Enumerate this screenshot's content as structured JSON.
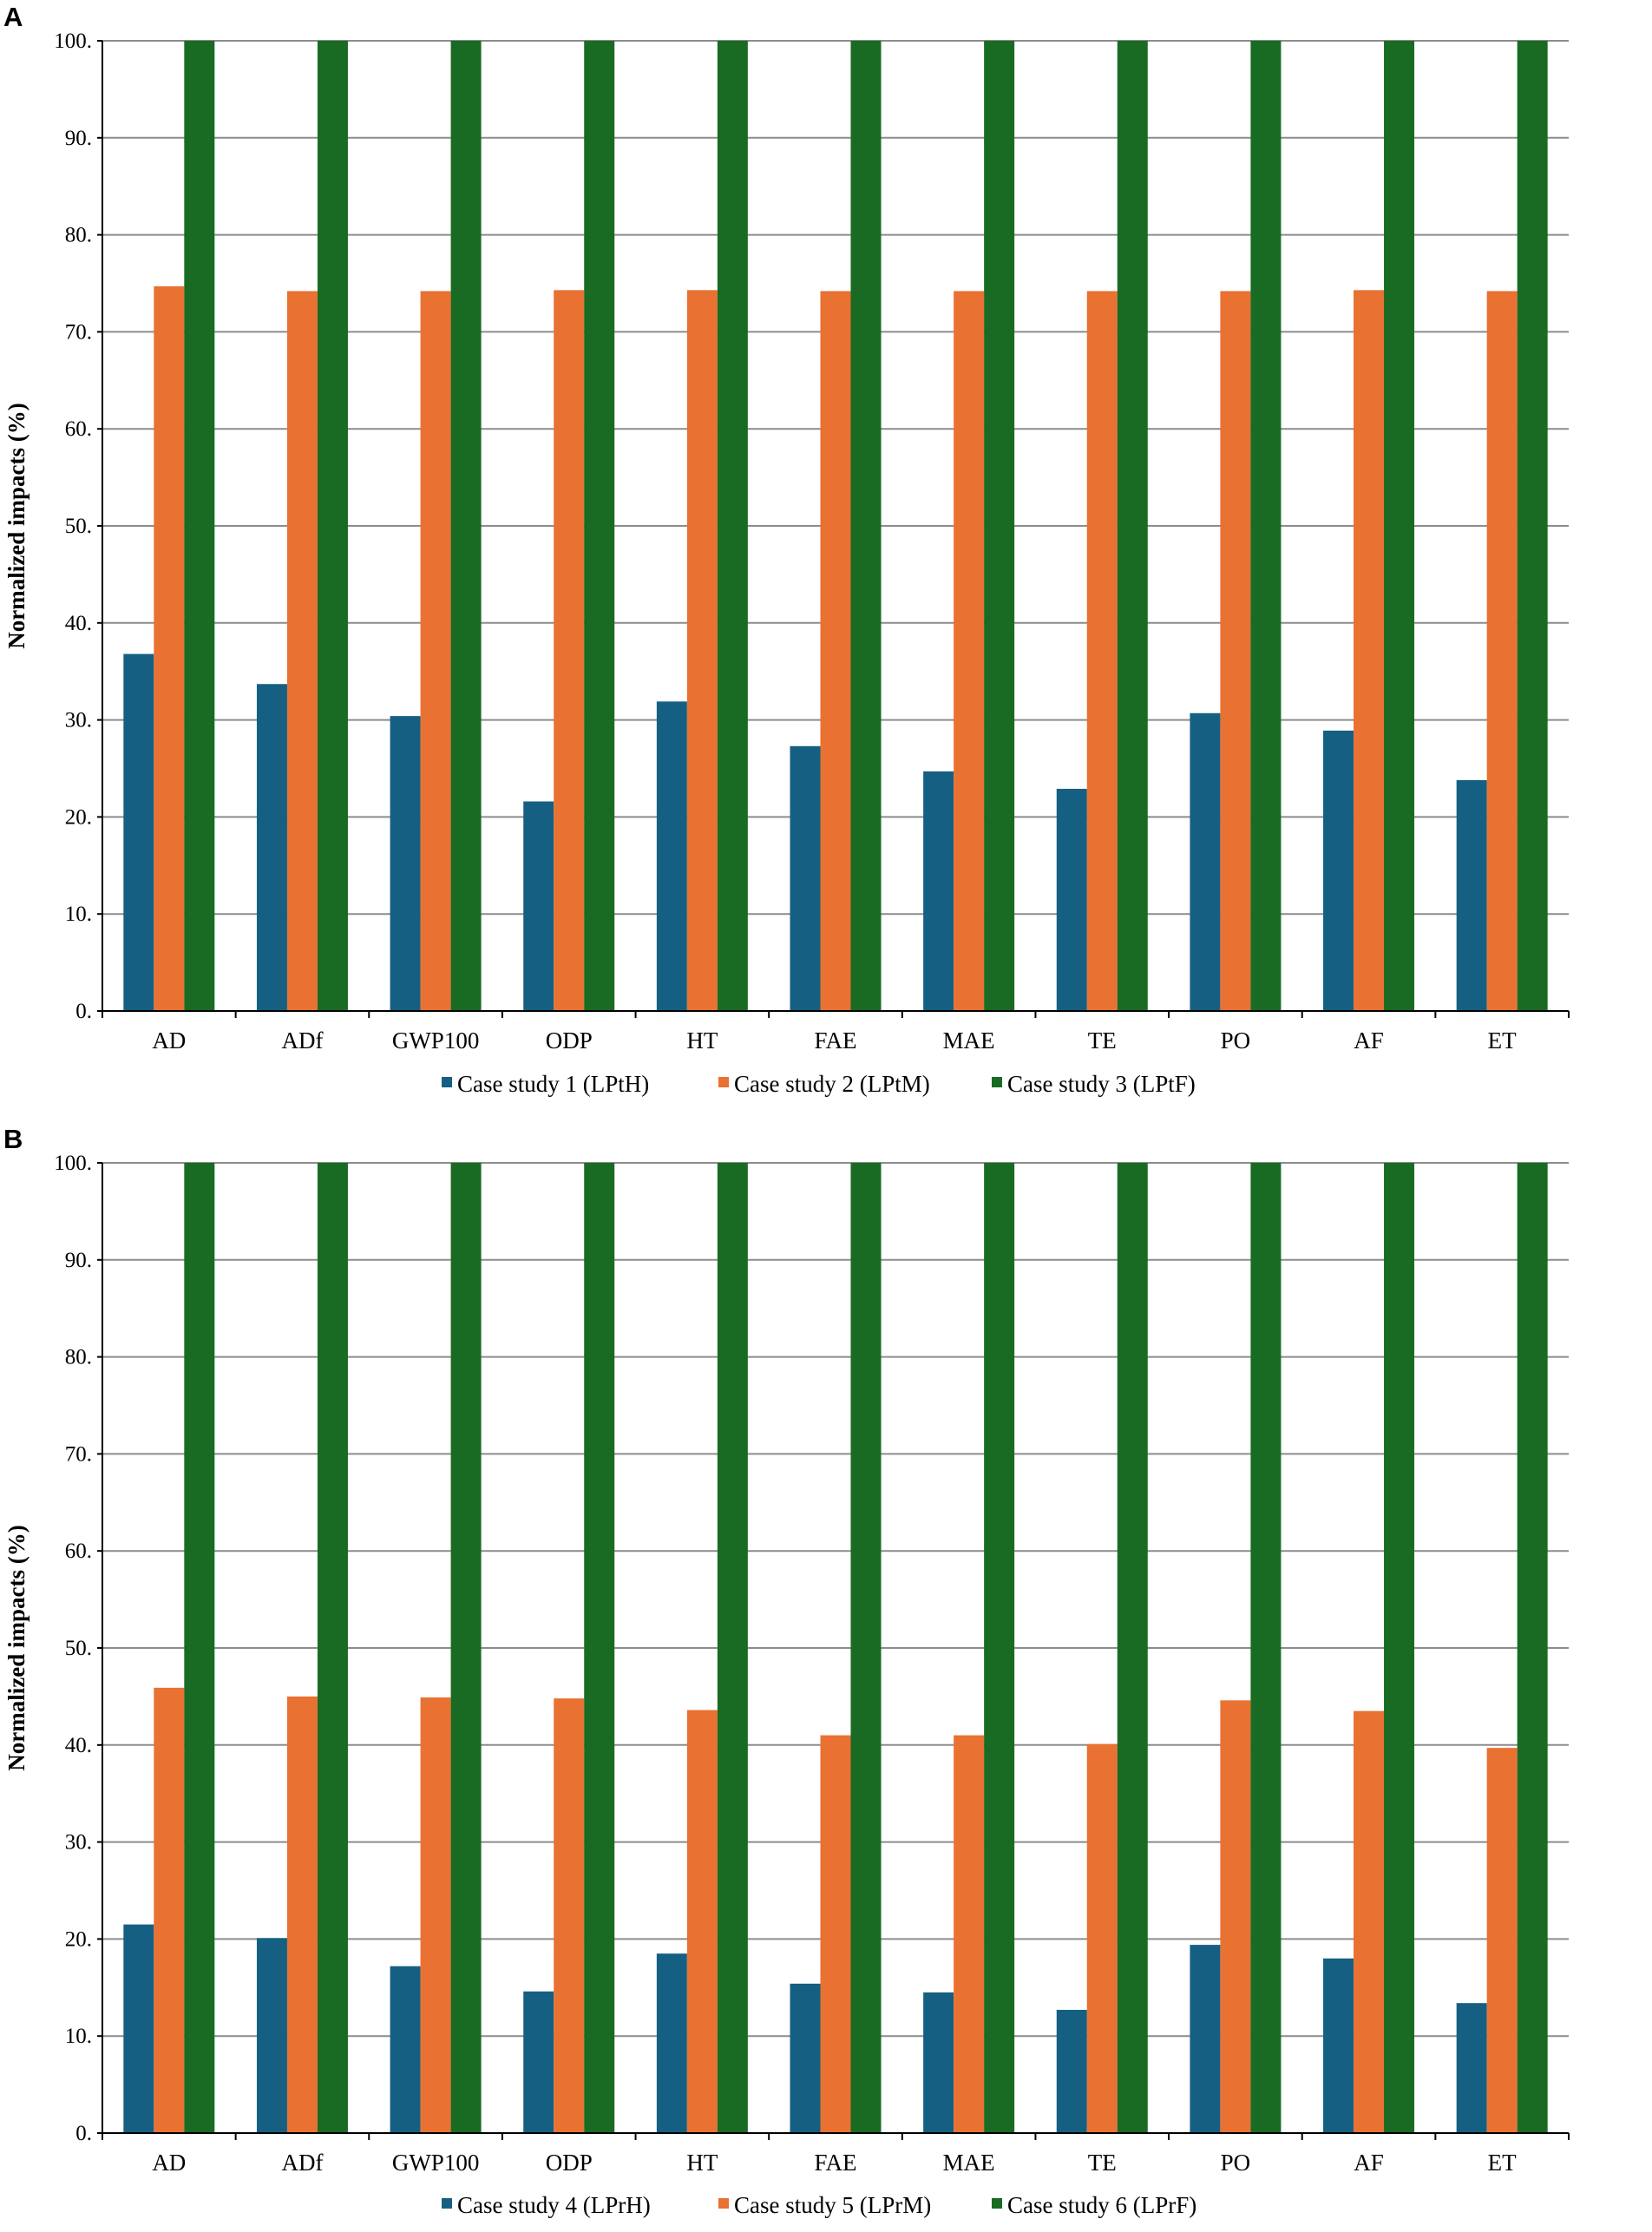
{
  "colors": {
    "series1": "#156082",
    "series2": "#e97132",
    "series3": "#196b24"
  },
  "chart_data": [
    {
      "panel": "A",
      "type": "bar",
      "ylabel": "Normalized impacts (%)",
      "ylim": [
        0,
        100
      ],
      "yticks": [
        "0.",
        "10.",
        "20.",
        "30.",
        "40.",
        "50.",
        "60.",
        "70.",
        "80.",
        "90.",
        "100."
      ],
      "grid": true,
      "legend_position": "bottom",
      "categories": [
        "AD",
        "ADf",
        "GWP100",
        "ODP",
        "HT",
        "FAE",
        "MAE",
        "TE",
        "PO",
        "AF",
        "ET"
      ],
      "series": [
        {
          "name": "Case study 1 (LPtH)",
          "color": "#156082",
          "values": [
            36.8,
            33.7,
            30.4,
            21.6,
            31.9,
            27.3,
            24.7,
            22.9,
            30.7,
            28.9,
            23.8
          ]
        },
        {
          "name": "Case study 2 (LPtM)",
          "color": "#e97132",
          "values": [
            74.7,
            74.2,
            74.2,
            74.3,
            74.3,
            74.2,
            74.2,
            74.2,
            74.2,
            74.3,
            74.2
          ]
        },
        {
          "name": "Case study 3 (LPtF)",
          "color": "#196b24",
          "values": [
            100,
            100,
            100,
            100,
            100,
            100,
            100,
            100,
            100,
            100,
            100
          ]
        }
      ]
    },
    {
      "panel": "B",
      "type": "bar",
      "ylabel": "Normalized impacts (%)",
      "ylim": [
        0,
        100
      ],
      "yticks": [
        "0.",
        "10.",
        "20.",
        "30.",
        "40.",
        "50.",
        "60.",
        "70.",
        "80.",
        "90.",
        "100."
      ],
      "grid": true,
      "legend_position": "bottom",
      "categories": [
        "AD",
        "ADf",
        "GWP100",
        "ODP",
        "HT",
        "FAE",
        "MAE",
        "TE",
        "PO",
        "AF",
        "ET"
      ],
      "series": [
        {
          "name": "Case study 4 (LPrH)",
          "color": "#156082",
          "values": [
            21.5,
            20.1,
            17.2,
            14.6,
            18.5,
            15.4,
            14.5,
            12.7,
            19.4,
            18.0,
            13.4
          ]
        },
        {
          "name": "Case study 5 (LPrM)",
          "color": "#e97132",
          "values": [
            45.9,
            45.0,
            44.9,
            44.8,
            43.6,
            41.0,
            41.0,
            40.1,
            44.6,
            43.5,
            39.7
          ]
        },
        {
          "name": "Case study 6 (LPrF)",
          "color": "#196b24",
          "values": [
            100,
            100,
            100,
            100,
            100,
            100,
            100,
            100,
            100,
            100,
            100
          ]
        }
      ]
    }
  ]
}
